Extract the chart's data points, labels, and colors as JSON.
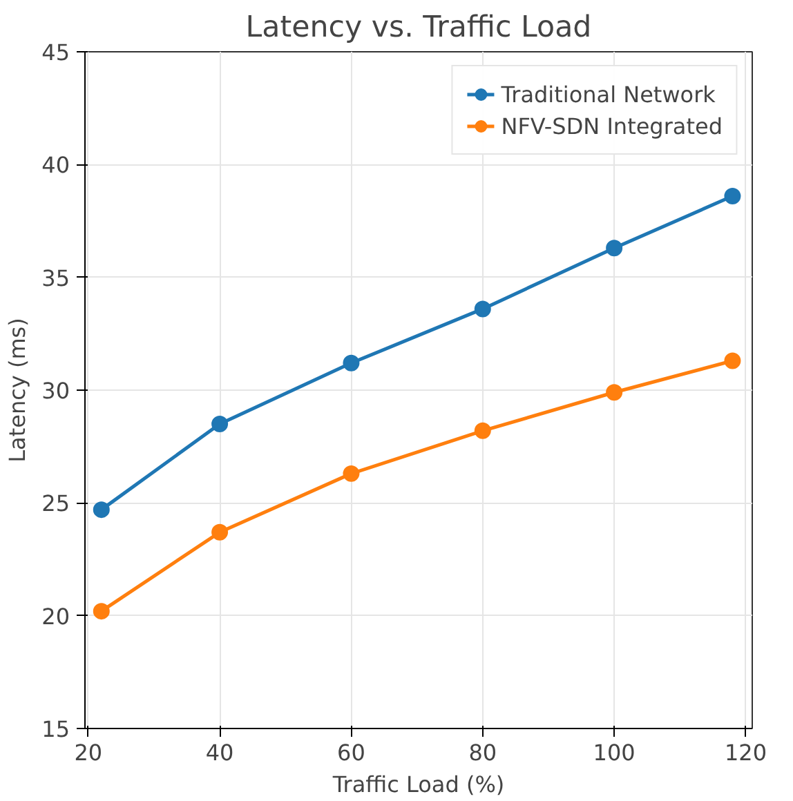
{
  "chart_data": {
    "type": "line",
    "title": "Latency vs. Traffic Load",
    "xlabel": "Traffic Load (%)",
    "ylabel": "Latency (ms)",
    "x": [
      22,
      40,
      60,
      80,
      100,
      118
    ],
    "series": [
      {
        "name": "Traditional Network",
        "color": "#1f77b4",
        "values": [
          24.7,
          28.5,
          31.2,
          33.6,
          36.3,
          38.6
        ]
      },
      {
        "name": "NFV-SDN Integrated",
        "color": "#ff7f0e",
        "values": [
          20.2,
          23.7,
          26.3,
          28.2,
          29.9,
          31.3
        ]
      }
    ],
    "xlim": [
      19.5,
      121
    ],
    "ylim": [
      15,
      45
    ],
    "xticks": [
      20,
      40,
      60,
      80,
      100,
      120
    ],
    "yticks": [
      15,
      20,
      25,
      30,
      35,
      40,
      45
    ],
    "grid": true,
    "legend": "top right",
    "marker": "circle",
    "line_style": "solid"
  }
}
